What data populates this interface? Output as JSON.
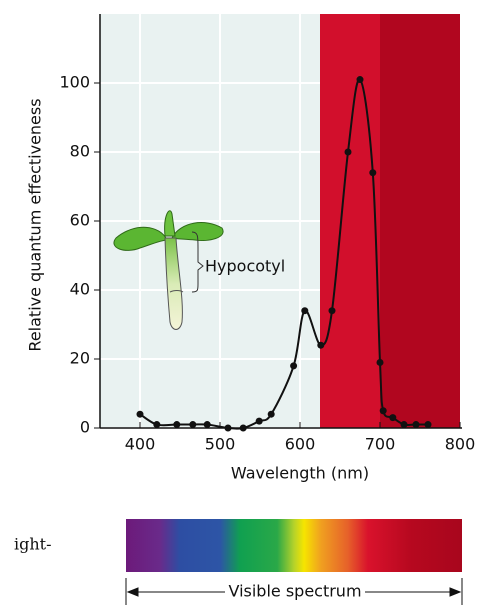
{
  "chart_data": {
    "type": "line",
    "x_label": "Wavelength (nm)",
    "y_label": "Relative quantum effectiveness",
    "annotation": "Hypocotyl",
    "spectrum_label": "Visible spectrum",
    "caption_fragment": "ight-",
    "xlim": [
      350,
      800
    ],
    "ylim": [
      0,
      120
    ],
    "xticks": [
      400,
      500,
      600,
      700,
      800
    ],
    "yticks": [
      0,
      20,
      40,
      60,
      80,
      100
    ],
    "regions": [
      {
        "range": [
          350,
          625
        ],
        "color": "#e9f2f1"
      },
      {
        "range": [
          625,
          700
        ],
        "color": "#d20f2c"
      },
      {
        "range": [
          700,
          800
        ],
        "color": "#b1061f"
      }
    ],
    "series": [
      {
        "color": "#111111",
        "x": [
          400,
          421,
          446,
          466,
          484,
          510,
          529,
          549,
          564,
          592,
          606,
          626,
          640,
          660,
          675,
          691,
          700,
          704,
          716,
          730,
          745,
          760
        ],
        "values": [
          4,
          1,
          1,
          1,
          1,
          0,
          0,
          2,
          4,
          18,
          34,
          24,
          34,
          80,
          101,
          74,
          19,
          5,
          3,
          1,
          1,
          1
        ]
      }
    ]
  }
}
